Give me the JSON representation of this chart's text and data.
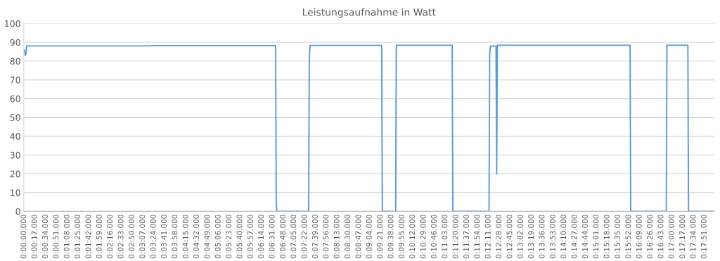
{
  "chart_data": {
    "type": "line",
    "title": "Leistungsaufnahme in Watt",
    "categories": [
      "0:00:00.000",
      null,
      null,
      null,
      null,
      null,
      null,
      null,
      null,
      null,
      null,
      null,
      null,
      null,
      null,
      null,
      null,
      "0:00:17.000",
      null,
      null,
      null,
      null,
      null,
      null,
      null,
      null,
      null,
      null,
      null,
      null,
      null,
      null,
      null,
      null,
      "0:00:34.000",
      null,
      null,
      null,
      null,
      null,
      null,
      null,
      null,
      null,
      null,
      null,
      null,
      null,
      null,
      null,
      null,
      "0:00:51.000",
      null,
      null,
      null,
      null,
      null,
      null,
      null,
      null,
      null,
      null,
      null,
      null,
      null,
      null,
      null,
      null,
      "0:01:08.000",
      null,
      null,
      null,
      null,
      null,
      null,
      null,
      null,
      null,
      null,
      null,
      null,
      null,
      null,
      null,
      null,
      "0:01:25.000",
      null,
      null,
      null,
      null,
      null,
      null,
      null,
      null,
      null,
      null,
      null,
      null,
      null,
      null,
      null,
      null,
      "0:01:42.000",
      null,
      null,
      null,
      null,
      null,
      null,
      null,
      null,
      null,
      null,
      null,
      null,
      null,
      null,
      null,
      null,
      "0:01:59.000",
      null,
      null,
      null,
      null,
      null,
      null,
      null,
      null,
      null,
      null,
      null,
      null,
      null,
      null,
      null,
      null,
      "0:02:16.000",
      null,
      null,
      null,
      null,
      null,
      null,
      null,
      null,
      null,
      null,
      null,
      null,
      null,
      null,
      null,
      null,
      "0:02:33.000",
      null,
      null,
      null,
      null,
      null,
      null,
      null,
      null,
      null,
      null,
      null,
      null,
      null,
      null,
      null,
      null,
      "0:02:50.000",
      null,
      null,
      null,
      null,
      null,
      null,
      null,
      null,
      null,
      null,
      null,
      null,
      null,
      null,
      null,
      null,
      "0:03:07.000",
      null,
      null,
      null,
      null,
      null,
      null,
      null,
      null,
      null,
      null,
      null,
      null,
      null,
      null,
      null,
      null,
      "0:03:24.000",
      null,
      null,
      null,
      null,
      null,
      null,
      null,
      null,
      null,
      null,
      null,
      null,
      null,
      null,
      null,
      null,
      "0:03:41.000",
      null,
      null,
      null,
      null,
      null,
      null,
      null,
      null,
      null,
      null,
      null,
      null,
      null,
      null,
      null,
      null,
      "0:03:58.000",
      null,
      null,
      null,
      null,
      null,
      null,
      null,
      null,
      null,
      null,
      null,
      null,
      null,
      null,
      null,
      null,
      "0:04:15.000",
      null,
      null,
      null,
      null,
      null,
      null,
      null,
      null,
      null,
      null,
      null,
      null,
      null,
      null,
      null,
      null,
      "0:04:32.000",
      null,
      null,
      null,
      null,
      null,
      null,
      null,
      null,
      null,
      null,
      null,
      null,
      null,
      null,
      null,
      null,
      "0:04:49.000",
      null,
      null,
      null,
      null,
      null,
      null,
      null,
      null,
      null,
      null,
      null,
      null,
      null,
      null,
      null,
      null,
      "0:05:06.000",
      null,
      null,
      null,
      null,
      null,
      null,
      null,
      null,
      null,
      null,
      null,
      null,
      null,
      null,
      null,
      null,
      "0:05:23.000",
      null,
      null,
      null,
      null,
      null,
      null,
      null,
      null,
      null,
      null,
      null,
      null,
      null,
      null,
      null,
      null,
      "0:05:40.000",
      null,
      null,
      null,
      null,
      null,
      null,
      null,
      null,
      null,
      null,
      null,
      null,
      null,
      null,
      null,
      null,
      "0:05:57.000",
      null,
      null,
      null,
      null,
      null,
      null,
      null,
      null,
      null,
      null,
      null,
      null,
      null,
      null,
      null,
      null,
      "0:06:14.000",
      null,
      null,
      null,
      null,
      null,
      null,
      null,
      null,
      null,
      null,
      null,
      null,
      null,
      null,
      null,
      null,
      "0:06:31.000",
      null,
      null,
      null,
      null,
      null,
      null,
      null,
      null,
      null,
      null,
      null,
      null,
      null,
      null,
      null,
      null,
      "0:06:48.000",
      null,
      null,
      null,
      null,
      null,
      null,
      null,
      null,
      null,
      null,
      null,
      null,
      null,
      null,
      null,
      null,
      "0:07:05.000",
      null,
      null,
      null,
      null,
      null,
      null,
      null,
      null,
      null,
      null,
      null,
      null,
      null,
      null,
      null,
      null,
      "0:07:22.000",
      null,
      null,
      null,
      null,
      null,
      null,
      null,
      null,
      null,
      null,
      null,
      null,
      null,
      null,
      null,
      null,
      "0:07:39.000",
      null,
      null,
      null,
      null,
      null,
      null,
      null,
      null,
      null,
      null,
      null,
      null,
      null,
      null,
      null,
      null,
      "0:07:56.000",
      null,
      null,
      null,
      null,
      null,
      null,
      null,
      null,
      null,
      null,
      null,
      null,
      null,
      null,
      null,
      null,
      "0:08:13.000",
      null,
      null,
      null,
      null,
      null,
      null,
      null,
      null,
      null,
      null,
      null,
      null,
      null,
      null,
      null,
      null,
      "0:08:30.000",
      null,
      null,
      null,
      null,
      null,
      null,
      null,
      null,
      null,
      null,
      null,
      null,
      null,
      null,
      null,
      null,
      "0:08:47.000",
      null,
      null,
      null,
      null,
      null,
      null,
      null,
      null,
      null,
      null,
      null,
      null,
      null,
      null,
      null,
      null,
      "0:09:04.000",
      null,
      null,
      null,
      null,
      null,
      null,
      null,
      null,
      null,
      null,
      null,
      null,
      null,
      null,
      null,
      null,
      "0:09:21.000",
      null,
      null,
      null,
      null,
      null,
      null,
      null,
      null,
      null,
      null,
      null,
      null,
      null,
      null,
      null,
      null,
      "0:09:38.000",
      null,
      null,
      null,
      null,
      null,
      null,
      null,
      null,
      null,
      null,
      null,
      null,
      null,
      null,
      null,
      null,
      "0:09:55.000",
      null,
      null,
      null,
      null,
      null,
      null,
      null,
      null,
      null,
      null,
      null,
      null,
      null,
      null,
      null,
      null,
      "0:10:12.000",
      null,
      null,
      null,
      null,
      null,
      null,
      null,
      null,
      null,
      null,
      null,
      null,
      null,
      null,
      null,
      null,
      "0:10:29.000",
      null,
      null,
      null,
      null,
      null,
      null,
      null,
      null,
      null,
      null,
      null,
      null,
      null,
      null,
      null,
      null,
      "0:10:46.000",
      null,
      null,
      null,
      null,
      null,
      null,
      null,
      null,
      null,
      null,
      null,
      null,
      null,
      null,
      null,
      null,
      "0:11:03.000",
      null,
      null,
      null,
      null,
      null,
      null,
      null,
      null,
      null,
      null,
      null,
      null,
      null,
      null,
      null,
      null,
      "0:11:20.000",
      null,
      null,
      null,
      null,
      null,
      null,
      null,
      null,
      null,
      null,
      null,
      null,
      null,
      null,
      null,
      null,
      "0:11:37.000",
      null,
      null,
      null,
      null,
      null,
      null,
      null,
      null,
      null,
      null,
      null,
      null,
      null,
      null,
      null,
      null,
      "0:11:54.000",
      null,
      null,
      null,
      null,
      null,
      null,
      null,
      null,
      null,
      null,
      null,
      null,
      null,
      null,
      null,
      null,
      "0:12:11.000",
      null,
      null,
      null,
      null,
      null,
      null,
      null,
      null,
      null,
      null,
      null,
      null,
      null,
      null,
      null,
      null,
      "0:12:28.000",
      null,
      null,
      null,
      null,
      null,
      null,
      null,
      null,
      null,
      null,
      null,
      null,
      null,
      null,
      null,
      null,
      "0:12:45.000",
      null,
      null,
      null,
      null,
      null,
      null,
      null,
      null,
      null,
      null,
      null,
      null,
      null,
      null,
      null,
      null,
      "0:13:02.000",
      null,
      null,
      null,
      null,
      null,
      null,
      null,
      null,
      null,
      null,
      null,
      null,
      null,
      null,
      null,
      null,
      "0:13:19.000",
      null,
      null,
      null,
      null,
      null,
      null,
      null,
      null,
      null,
      null,
      null,
      null,
      null,
      null,
      null,
      null,
      "0:13:36.000",
      null,
      null,
      null,
      null,
      null,
      null,
      null,
      null,
      null,
      null,
      null,
      null,
      null,
      null,
      null,
      null,
      "0:13:53.000",
      null,
      null,
      null,
      null,
      null,
      null,
      null,
      null,
      null,
      null,
      null,
      null,
      null,
      null,
      null,
      null,
      "0:14:10.000",
      null,
      null,
      null,
      null,
      null,
      null,
      null,
      null,
      null,
      null,
      null,
      null,
      null,
      null,
      null,
      null,
      "0:14:27.000",
      null,
      null,
      null,
      null,
      null,
      null,
      null,
      null,
      null,
      null,
      null,
      null,
      null,
      null,
      null,
      null,
      "0:14:44.000",
      null,
      null,
      null,
      null,
      null,
      null,
      null,
      null,
      null,
      null,
      null,
      null,
      null,
      null,
      null,
      null,
      "0:15:01.000",
      null,
      null,
      null,
      null,
      null,
      null,
      null,
      null,
      null,
      null,
      null,
      null,
      null,
      null,
      null,
      null,
      "0:15:18.000",
      null,
      null,
      null,
      null,
      null,
      null,
      null,
      null,
      null,
      null,
      null,
      null,
      null,
      null,
      null,
      null,
      "0:15:35.000",
      null,
      null,
      null,
      null,
      null,
      null,
      null,
      null,
      null,
      null,
      null,
      null,
      null,
      null,
      null,
      null,
      "0:15:52.000",
      null,
      null,
      null,
      null,
      null,
      null,
      null,
      null,
      null,
      null,
      null,
      null,
      null,
      null,
      null,
      null,
      "0:16:09.000",
      null,
      null,
      null,
      null,
      null,
      null,
      null,
      null,
      null,
      null,
      null,
      null,
      null,
      null,
      null,
      null,
      "0:16:26.000",
      null,
      null,
      null,
      null,
      null,
      null,
      null,
      null,
      null,
      null,
      null,
      null,
      null,
      null,
      null,
      null,
      "0:16:43.000",
      null,
      null,
      null,
      null,
      null,
      null,
      null,
      null,
      null,
      null,
      null,
      null,
      null,
      null,
      null,
      null,
      "0:17:00.000",
      null,
      null,
      null,
      null,
      null,
      null,
      null,
      null,
      null,
      null,
      null,
      null,
      null,
      null,
      null,
      null,
      "0:17:17.000",
      null,
      null,
      null,
      null,
      null,
      null,
      null,
      null,
      null,
      null,
      null,
      null,
      null,
      null,
      null,
      null,
      "0:17:34.000",
      null,
      null,
      null,
      null,
      null,
      null,
      null,
      null,
      null,
      null,
      null,
      null,
      null,
      null,
      null,
      null,
      "0:17:51.000",
      null,
      null,
      null,
      null,
      null,
      null,
      null,
      null,
      null,
      null,
      null,
      null,
      null,
      null,
      null
    ],
    "series": [
      {
        "color": "#5b9bd5",
        "values": [
          86,
          85,
          83,
          84,
          88,
          88.1,
          88.1,
          88.1,
          88.1,
          88.1,
          88.1,
          88.1,
          88.1,
          88.1,
          88.1,
          88.1,
          88.1,
          88.1,
          88.1,
          88.1,
          88.1,
          88.1,
          88.1,
          88.1,
          88.1,
          88.1,
          88.1,
          88.1,
          88.1,
          88.1,
          88.1,
          88.1,
          88.1,
          88.1,
          88.1,
          88.1,
          88.1,
          88.1,
          88.1,
          88.1,
          88.1,
          88.1,
          88.1,
          88.1,
          88.1,
          88.1,
          88.1,
          88.1,
          88.1,
          88.1,
          88.1,
          88.1,
          88.1,
          88.1,
          88.1,
          88.1,
          88.1,
          88.1,
          88.1,
          88.1,
          88.1,
          88.1,
          88.1,
          88.1,
          88.1,
          88.1,
          88.1,
          88.1,
          88.1,
          88.1,
          88.1,
          88.1,
          88.1,
          88.1,
          88.1,
          88.1,
          88.1,
          88.1,
          88.1,
          88.1,
          88.1,
          88.1,
          88.1,
          88.1,
          88.1,
          88.1,
          88.1,
          88.1,
          88.1,
          88.1,
          88.1,
          88.1,
          88.1,
          88.1,
          88.1,
          88.1,
          88.1,
          88.1,
          88.1,
          88.1,
          88.1,
          88.1,
          88.1,
          88.1,
          88.1,
          88.1,
          88.1,
          88.1,
          88.1,
          88.1,
          88.1,
          88.1,
          88.1,
          88.1,
          88.1,
          88.1,
          88.1,
          88.1,
          88.1,
          88.1,
          88.1,
          88.1,
          88.1,
          88.1,
          88.1,
          88.1,
          88.1,
          88.1,
          88.1,
          88.1,
          88.1,
          88.1,
          88.1,
          88.1,
          88.1,
          88.1,
          88.1,
          88.1,
          88.1,
          88.1,
          88.1,
          88.1,
          88.1,
          88.1,
          88.1,
          88.1,
          88.1,
          88.1,
          88.1,
          88.1,
          88.1,
          88.1,
          88.1,
          88.1,
          88.1,
          88.1,
          88.1,
          88.1,
          88.1,
          88.1,
          88.1,
          88.1,
          88.1,
          88.1,
          88.1,
          88.1,
          88.1,
          88.1,
          88.1,
          88.1,
          88.1,
          88.1,
          88.1,
          88.1,
          88.1,
          88.1,
          88.1,
          88.1,
          88.1,
          88.1,
          88.1,
          88.1,
          88.1,
          88.1,
          88.1,
          88.1,
          88.1,
          88.1,
          88.1,
          88.1,
          88.1,
          88.1,
          88.1,
          88.1,
          88.1,
          88.1,
          88.1,
          88.1,
          88.1,
          88.1,
          88.2,
          88.2,
          88.2,
          88.2,
          88.2,
          88.2,
          88.2,
          88.2,
          88.2,
          88.2,
          88.2,
          88.2,
          88.2,
          88.2,
          88.2,
          88.2,
          88.2,
          88.2,
          88.2,
          88.2,
          88.2,
          88.2,
          88.2,
          88.2,
          88.2,
          88.2,
          88.2,
          88.2,
          88.2,
          88.2,
          88.2,
          88.2,
          88.2,
          88.2,
          88.2,
          88.2,
          88.2,
          88.2,
          88.2,
          88.2,
          88.2,
          88.2,
          88.2,
          88.2,
          88.2,
          88.2,
          88.2,
          88.2,
          88.2,
          88.2,
          88.2,
          88.2,
          88.2,
          88.2,
          88.2,
          88.2,
          88.2,
          88.2,
          88.2,
          88.2,
          88.2,
          88.2,
          88.2,
          88.2,
          88.2,
          88.2,
          88.2,
          88.2,
          88.2,
          88.2,
          88.2,
          88.2,
          88.2,
          88.2,
          88.2,
          88.2,
          88.2,
          88.2,
          88.2,
          88.2,
          88.2,
          88.2,
          88.2,
          88.2,
          88.2,
          88.2,
          88.2,
          88.2,
          88.2,
          88.2,
          88.2,
          88.2,
          88.2,
          88.2,
          88.2,
          88.2,
          88.2,
          88.2,
          88.2,
          88.2,
          88.2,
          88.2,
          88.2,
          88.2,
          88.2,
          88.2,
          88.2,
          88.2,
          88.2,
          88.2,
          88.2,
          88.2,
          88.2,
          88.2,
          88.2,
          88.2,
          88.2,
          88.2,
          88.2,
          88.2,
          88.2,
          88.2,
          88.2,
          88.2,
          88.2,
          88.2,
          88.2,
          88.2,
          88.2,
          88.2,
          88.2,
          88.2,
          88.2,
          88.2,
          88.2,
          88.2,
          88.2,
          88.2,
          88.2,
          88.2,
          88.2,
          88.2,
          88.2,
          88.2,
          88.2,
          88.2,
          88.2,
          88.2,
          88.2,
          88.2,
          88.2,
          88.2,
          88.2,
          88.2,
          88.2,
          88.2,
          88.2,
          88.2,
          88.2,
          88.2,
          88.2,
          88.2,
          88.2,
          88.2,
          88.2,
          88.2,
          88.2,
          88.2,
          88.2,
          88.2,
          88.2,
          88.2,
          88.2,
          88.2,
          88.2,
          88.2,
          88.2,
          88.2,
          88.2,
          88.2,
          88.2,
          88.2,
          88.2,
          88.2,
          88.2,
          88.2,
          88.2,
          88.2,
          88.2,
          88.2,
          88.2,
          88.2,
          88.2,
          88.2,
          88.2,
          88.2,
          88.2,
          4,
          0,
          0,
          0,
          0,
          0,
          0,
          0,
          0,
          0,
          0,
          0,
          0,
          0,
          0,
          0,
          0,
          0,
          0,
          0,
          0,
          0,
          0,
          0,
          0,
          0,
          0,
          0,
          0,
          0,
          0,
          0,
          0,
          0,
          0,
          0,
          0,
          0,
          0,
          0,
          0,
          0,
          0,
          0,
          0,
          0,
          0,
          0,
          0,
          0,
          0,
          0,
          80,
          88.3,
          88.3,
          88.3,
          88.3,
          88.3,
          88.3,
          88.3,
          88.3,
          88.3,
          88.3,
          88.3,
          88.3,
          88.3,
          88.3,
          88.3,
          88.3,
          88.3,
          88.3,
          88.3,
          88.3,
          88.3,
          88.3,
          88.3,
          88.3,
          88.3,
          88.3,
          88.3,
          88.3,
          88.3,
          88.3,
          88.3,
          88.3,
          88.3,
          88.3,
          88.3,
          88.3,
          88.3,
          88.3,
          88.3,
          88.3,
          88.3,
          88.3,
          88.3,
          88.3,
          88.3,
          88.3,
          88.3,
          88.3,
          88.3,
          88.3,
          88.3,
          88.3,
          88.3,
          88.3,
          88.3,
          88.3,
          88.3,
          88.3,
          88.3,
          88.3,
          88.3,
          88.3,
          88.3,
          88.3,
          88.3,
          88.3,
          88.3,
          88.3,
          88.3,
          88.3,
          88.3,
          88.3,
          88.3,
          88.3,
          88.3,
          88.3,
          88.3,
          88.3,
          88.3,
          88.3,
          88.3,
          88.3,
          88.3,
          88.3,
          88.3,
          88.3,
          88.3,
          88.3,
          88.3,
          88.3,
          88.3,
          88.3,
          88.3,
          88.3,
          88.3,
          88.3,
          88.3,
          88.3,
          88.3,
          88.3,
          88.3,
          88.3,
          88.3,
          88.3,
          88.3,
          88.3,
          88.3,
          88.3,
          88.3,
          88.3,
          88.3,
          88.3,
          88.3,
          88.3,
          0,
          0,
          0,
          0,
          0,
          0,
          0,
          0,
          0,
          0,
          0,
          0,
          0,
          0,
          0,
          0,
          0,
          0,
          0,
          0,
          0,
          0,
          88.4,
          88.4,
          88.4,
          88.4,
          88.4,
          88.4,
          88.4,
          88.4,
          88.4,
          88.4,
          88.4,
          88.4,
          88.4,
          88.4,
          88.4,
          88.4,
          88.4,
          88.4,
          88.4,
          88.4,
          88.4,
          88.4,
          88.4,
          88.4,
          88.4,
          88.4,
          88.4,
          88.4,
          88.4,
          88.4,
          88.4,
          88.4,
          88.4,
          88.4,
          88.4,
          88.4,
          88.4,
          88.4,
          88.4,
          88.4,
          88.4,
          88.4,
          88.4,
          88.4,
          88.4,
          88.4,
          88.4,
          88.4,
          88.4,
          88.4,
          88.4,
          88.4,
          88.4,
          88.4,
          88.4,
          88.4,
          88.4,
          88.4,
          88.4,
          88.4,
          88.4,
          88.4,
          88.4,
          88.4,
          88.4,
          88.4,
          88.4,
          88.4,
          88.4,
          88.4,
          88.4,
          88.4,
          88.4,
          88.4,
          88.4,
          88.4,
          88.4,
          88.4,
          88.4,
          88.4,
          88.4,
          88.4,
          88.4,
          88.4,
          88.4,
          88.4,
          88.4,
          88.4,
          88.4,
          0,
          0,
          0,
          0,
          0,
          0,
          0,
          0,
          0,
          0,
          0,
          0,
          0,
          0,
          0,
          0,
          0,
          0,
          0,
          0,
          0,
          0,
          0,
          0,
          0,
          0,
          0,
          0,
          0,
          0,
          0,
          0,
          0,
          0,
          0,
          0,
          0,
          0,
          0,
          0,
          0,
          0,
          0,
          0,
          0,
          0,
          0,
          0,
          0,
          0,
          0,
          0,
          0,
          0,
          0,
          0,
          0,
          0,
          83,
          88,
          88,
          88,
          88,
          88,
          88,
          88,
          88,
          88,
          88,
          20,
          88.4,
          88.4,
          88.4,
          88.4,
          88.4,
          88.4,
          88.4,
          88.4,
          88.4,
          88.4,
          88.4,
          88.4,
          88.4,
          88.4,
          88.4,
          88.4,
          88.4,
          88.4,
          88.4,
          88.4,
          88.4,
          88.4,
          88.4,
          88.4,
          88.4,
          88.4,
          88.4,
          88.4,
          88.4,
          88.4,
          88.4,
          88.4,
          88.4,
          88.4,
          88.4,
          88.4,
          88.4,
          88.4,
          88.4,
          88.4,
          88.4,
          88.4,
          88.4,
          88.4,
          88.4,
          88.4,
          88.4,
          88.4,
          88.4,
          88.4,
          88.4,
          88.4,
          88.4,
          88.4,
          88.4,
          88.4,
          88.4,
          88.4,
          88.4,
          88.4,
          88.4,
          88.4,
          88.4,
          88.4,
          88.4,
          88.4,
          88.4,
          88.4,
          88.4,
          88.4,
          88.4,
          88.4,
          88.4,
          88.4,
          88.4,
          88.4,
          88.4,
          88.4,
          88.4,
          88.4,
          88.4,
          88.4,
          88.4,
          88.4,
          88.4,
          88.4,
          88.4,
          88.4,
          88.4,
          88.4,
          88.4,
          88.4,
          88.4,
          88.4,
          88.4,
          88.4,
          88.4,
          88.4,
          88.4,
          88.4,
          88.4,
          88.4,
          88.4,
          88.4,
          88.4,
          88.4,
          88.4,
          88.4,
          88.4,
          88.4,
          88.4,
          88.4,
          88.4,
          88.4,
          88.4,
          88.4,
          88.4,
          88.4,
          88.4,
          88.4,
          88.4,
          88.4,
          88.4,
          88.4,
          88.4,
          88.4,
          88.4,
          88.4,
          88.4,
          88.4,
          88.4,
          88.4,
          88.4,
          88.4,
          88.4,
          88.4,
          88.4,
          88.4,
          88.4,
          88.4,
          88.4,
          88.4,
          88.4,
          88.4,
          88.4,
          88.4,
          88.4,
          88.4,
          88.4,
          88.4,
          88.4,
          88.4,
          88.4,
          88.4,
          88.4,
          88.4,
          88.4,
          88.4,
          88.4,
          88.4,
          88.4,
          88.4,
          88.4,
          88.4,
          88.4,
          88.4,
          88.4,
          88.4,
          88.4,
          88.4,
          88.4,
          88.4,
          88.4,
          88.4,
          88.4,
          88.4,
          88.4,
          88.4,
          88.4,
          88.4,
          88.4,
          88.4,
          88.4,
          88.4,
          88.4,
          88.4,
          88.4,
          88.4,
          88.4,
          88.4,
          88.4,
          88.4,
          88.4,
          88.4,
          88.4,
          88.4,
          88.4,
          88.4,
          88.4,
          88.4,
          88.4,
          88.4,
          88.4,
          88.4,
          88.4,
          88.4,
          88.4,
          88.4,
          88.4,
          88.4,
          0,
          0,
          0,
          0,
          0,
          0,
          0,
          0,
          0,
          0,
          0,
          0,
          0,
          0,
          0,
          0,
          0,
          0,
          0,
          0,
          0,
          0,
          0,
          0,
          0,
          0.4,
          0,
          0,
          0,
          0,
          0,
          0,
          0,
          0,
          0,
          0,
          0,
          0,
          0,
          0,
          0,
          0,
          0,
          0,
          0,
          0,
          0,
          0,
          0,
          0,
          0,
          0,
          0,
          0,
          0,
          0,
          0,
          88.4,
          88.4,
          88.4,
          88.4,
          88.4,
          88.4,
          88.4,
          88.4,
          88.4,
          88.4,
          88.4,
          88.4,
          88.4,
          88.4,
          88.4,
          88.4,
          88.4,
          88.4,
          88.4,
          88.4,
          88.4,
          88.4,
          88.4,
          88.4,
          88.4,
          88.4,
          88.4,
          88.4,
          88.4,
          88.4,
          88.4,
          88.4,
          88.4,
          88.4,
          0,
          0,
          0,
          0,
          0,
          0,
          0,
          0,
          0,
          0,
          0,
          0,
          0,
          0,
          0,
          0,
          0,
          0,
          0,
          0,
          0,
          0,
          0,
          0,
          0,
          0,
          0,
          0,
          0,
          0,
          0,
          0,
          0,
          0,
          0,
          0,
          0,
          0,
          0,
          0,
          0
        ]
      }
    ],
    "ylim": [
      0,
      100
    ],
    "yticks": [
      0,
      10,
      20,
      30,
      40,
      50,
      60,
      70,
      80,
      90,
      100
    ],
    "grid": "y",
    "legend": false,
    "line_style": "solid",
    "marker": "none"
  }
}
